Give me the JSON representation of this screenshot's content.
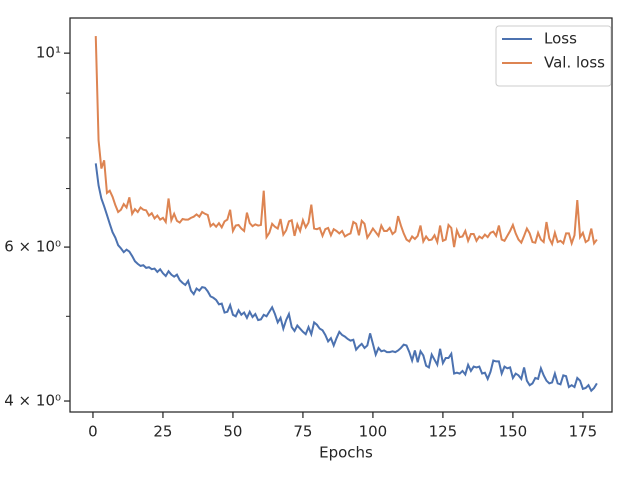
{
  "chart_data": {
    "type": "line",
    "xlabel": "Epochs",
    "x": [
      1,
      2,
      3,
      4,
      5,
      6,
      7,
      8,
      9,
      10,
      11,
      12,
      13,
      14,
      15,
      16,
      17,
      18,
      19,
      20,
      21,
      22,
      23,
      24,
      25,
      26,
      27,
      28,
      29,
      30,
      31,
      32,
      33,
      34,
      35,
      36,
      37,
      38,
      39,
      40,
      41,
      42,
      43,
      44,
      45,
      46,
      47,
      48,
      49,
      50,
      51,
      52,
      53,
      54,
      55,
      56,
      57,
      58,
      59,
      60,
      61,
      62,
      63,
      64,
      65,
      66,
      67,
      68,
      69,
      70,
      71,
      72,
      73,
      74,
      75,
      76,
      77,
      78,
      79,
      80,
      81,
      82,
      83,
      84,
      85,
      86,
      87,
      88,
      89,
      90,
      91,
      92,
      93,
      94,
      95,
      96,
      97,
      98,
      99,
      100,
      101,
      102,
      103,
      104,
      105,
      106,
      107,
      108,
      109,
      110,
      111,
      112,
      113,
      114,
      115,
      116,
      117,
      118,
      119,
      120,
      121,
      122,
      123,
      124,
      125,
      126,
      127,
      128,
      129,
      130,
      131,
      132,
      133,
      134,
      135,
      136,
      137,
      138,
      139,
      140,
      141,
      142,
      143,
      144,
      145,
      146,
      147,
      148,
      149,
      150,
      151,
      152,
      153,
      154,
      155,
      156,
      157,
      158,
      159,
      160,
      161,
      162,
      163,
      164,
      165,
      166,
      167,
      168,
      169,
      170,
      171,
      172,
      173,
      174,
      175,
      176,
      177,
      178,
      179,
      180
    ],
    "series": [
      {
        "name": "Loss",
        "color": "#4c72b0",
        "values": [
          7.48,
          7.06,
          6.82,
          6.68,
          6.53,
          6.38,
          6.24,
          6.15,
          6.03,
          5.98,
          5.92,
          5.96,
          5.93,
          5.86,
          5.78,
          5.74,
          5.71,
          5.72,
          5.68,
          5.69,
          5.66,
          5.67,
          5.62,
          5.66,
          5.6,
          5.56,
          5.63,
          5.58,
          5.55,
          5.58,
          5.5,
          5.46,
          5.43,
          5.49,
          5.35,
          5.3,
          5.38,
          5.35,
          5.4,
          5.39,
          5.34,
          5.27,
          5.25,
          5.22,
          5.16,
          5.17,
          5.05,
          5.06,
          5.15,
          5.02,
          5.0,
          5.08,
          5.02,
          5.05,
          4.98,
          5.06,
          4.99,
          5.03,
          4.95,
          4.96,
          5.02,
          5.0,
          5.06,
          5.12,
          5.03,
          4.92,
          4.98,
          4.84,
          4.95,
          5.03,
          4.86,
          4.81,
          4.88,
          4.84,
          4.8,
          4.77,
          4.86,
          4.77,
          4.92,
          4.89,
          4.84,
          4.82,
          4.76,
          4.68,
          4.72,
          4.63,
          4.72,
          4.8,
          4.76,
          4.74,
          4.71,
          4.69,
          4.7,
          4.58,
          4.62,
          4.65,
          4.6,
          4.63,
          4.78,
          4.65,
          4.52,
          4.6,
          4.56,
          4.57,
          4.55,
          4.55,
          4.56,
          4.55,
          4.57,
          4.6,
          4.64,
          4.63,
          4.55,
          4.45,
          4.57,
          4.43,
          4.56,
          4.51,
          4.39,
          4.37,
          4.52,
          4.46,
          4.4,
          4.59,
          4.42,
          4.48,
          4.48,
          4.53,
          4.3,
          4.31,
          4.3,
          4.33,
          4.29,
          4.4,
          4.33,
          4.38,
          4.37,
          4.38,
          4.3,
          4.31,
          4.24,
          4.32,
          4.45,
          4.44,
          4.44,
          4.3,
          4.38,
          4.36,
          4.37,
          4.25,
          4.3,
          4.28,
          4.24,
          4.37,
          4.22,
          4.17,
          4.19,
          4.25,
          4.24,
          4.36,
          4.28,
          4.22,
          4.19,
          4.2,
          4.3,
          4.19,
          4.18,
          4.28,
          4.27,
          4.15,
          4.17,
          4.15,
          4.25,
          4.22,
          4.13,
          4.14,
          4.17,
          4.11,
          4.14,
          4.19
        ]
      },
      {
        "name": "Val. loss",
        "color": "#dd8452",
        "values": [
          10.46,
          7.95,
          7.38,
          7.54,
          6.92,
          6.96,
          6.85,
          6.7,
          6.58,
          6.62,
          6.72,
          6.66,
          6.84,
          6.55,
          6.63,
          6.58,
          6.66,
          6.62,
          6.61,
          6.52,
          6.56,
          6.47,
          6.52,
          6.45,
          6.48,
          6.41,
          6.82,
          6.44,
          6.55,
          6.43,
          6.4,
          6.46,
          6.45,
          6.45,
          6.48,
          6.5,
          6.54,
          6.5,
          6.58,
          6.55,
          6.53,
          6.34,
          6.38,
          6.33,
          6.39,
          6.32,
          6.42,
          6.45,
          6.62,
          6.26,
          6.35,
          6.36,
          6.3,
          6.26,
          6.57,
          6.39,
          6.34,
          6.37,
          6.35,
          6.36,
          6.96,
          6.16,
          6.23,
          6.38,
          6.33,
          6.3,
          6.46,
          6.2,
          6.27,
          6.42,
          6.44,
          6.18,
          6.37,
          6.26,
          6.44,
          6.32,
          6.4,
          6.71,
          6.3,
          6.29,
          6.31,
          6.18,
          6.29,
          6.31,
          6.19,
          6.29,
          6.26,
          6.22,
          6.26,
          6.17,
          6.2,
          6.22,
          6.41,
          6.38,
          6.19,
          6.43,
          6.38,
          6.15,
          6.22,
          6.3,
          6.24,
          6.18,
          6.35,
          6.26,
          6.26,
          6.31,
          6.21,
          6.25,
          6.51,
          6.35,
          6.22,
          6.12,
          6.09,
          6.17,
          6.13,
          6.18,
          6.35,
          6.09,
          6.17,
          6.11,
          6.12,
          6.19,
          6.08,
          6.35,
          6.1,
          6.12,
          6.36,
          6.31,
          6.0,
          6.27,
          6.16,
          6.17,
          6.26,
          6.1,
          6.21,
          6.21,
          6.1,
          6.17,
          6.14,
          6.2,
          6.16,
          6.23,
          6.25,
          6.18,
          6.35,
          6.12,
          6.1,
          6.18,
          6.26,
          6.36,
          6.22,
          6.12,
          6.07,
          6.18,
          6.3,
          6.22,
          6.08,
          6.07,
          6.23,
          6.12,
          6.08,
          6.41,
          6.14,
          6.05,
          6.23,
          6.08,
          6.1,
          6.06,
          6.22,
          6.22,
          6.06,
          6.19,
          6.79,
          6.16,
          6.23,
          6.08,
          6.11,
          6.3,
          6.06,
          6.12
        ]
      }
    ],
    "xlim": [
      -8.2,
      185.4
    ],
    "xticks": [
      0,
      25,
      50,
      75,
      100,
      125,
      150,
      175
    ],
    "ylim": [
      3.886,
      10.97
    ],
    "ylog": true,
    "yticks": [
      {
        "value": 4,
        "label": "4 × 10⁰"
      },
      {
        "value": 6,
        "label": "6 × 10⁰"
      },
      {
        "value": 10,
        "label": "10¹"
      }
    ],
    "yminorticks": [
      5,
      7,
      8,
      9
    ],
    "legend": "upper right"
  }
}
